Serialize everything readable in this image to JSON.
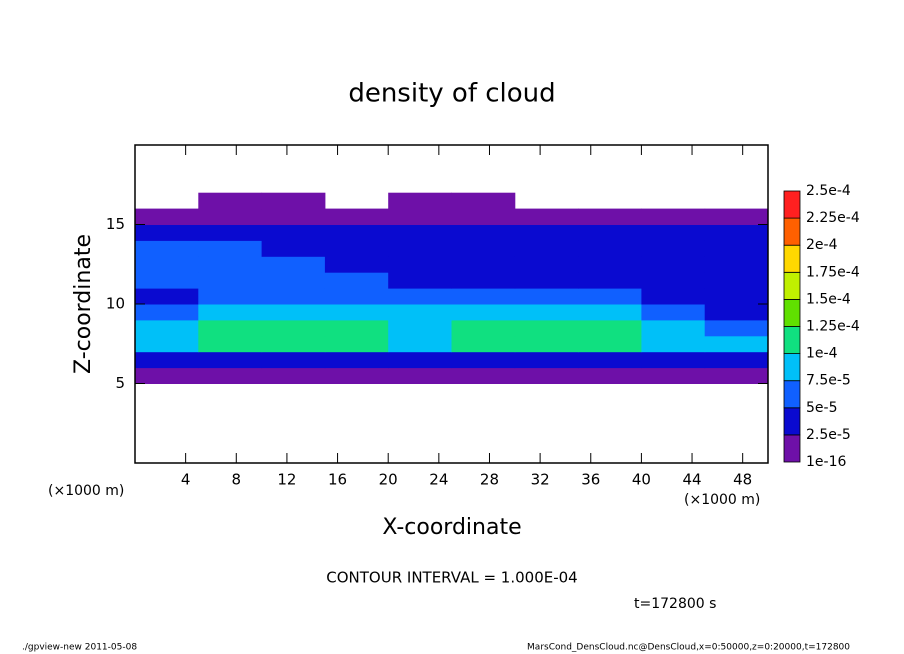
{
  "chart_data": {
    "type": "contour",
    "title": "density of cloud",
    "xlabel": "X-coordinate",
    "ylabel": "Z-coordinate",
    "xunit": "(×1000 m)",
    "yunit": "(×1000 m)",
    "annotation": "CONTOUR INTERVAL = 1.000E-04",
    "time_label": "t=172800 s",
    "footer_left": "./gpview-new  2011-05-08",
    "footer_right": "MarsCond_DensCloud.nc@DensCloud,x=0:50000,z=0:20000,t=172800",
    "xlim": [
      0,
      50
    ],
    "ylim": [
      0,
      20
    ],
    "xticks": [
      4,
      8,
      12,
      16,
      20,
      24,
      28,
      32,
      36,
      40,
      44,
      48
    ],
    "yticks": [
      5,
      10,
      15
    ],
    "x": [
      2.5,
      7.5,
      12.5,
      17.5,
      22.5,
      27.5,
      32.5,
      37.5,
      42.5,
      47.5
    ],
    "z": [
      0.5,
      1.5,
      2.5,
      3.5,
      4.5,
      5.5,
      6.5,
      7.5,
      8.5,
      9.5,
      10.5,
      11.5,
      12.5,
      13.5,
      14.5,
      15.5,
      16.5,
      17.5,
      18.5,
      19.5
    ],
    "values": [
      [
        null,
        null,
        null,
        null,
        null,
        null,
        null,
        null,
        null,
        null
      ],
      [
        null,
        null,
        null,
        null,
        null,
        null,
        null,
        null,
        null,
        null
      ],
      [
        null,
        null,
        null,
        null,
        null,
        null,
        null,
        null,
        null,
        null
      ],
      [
        null,
        null,
        null,
        null,
        null,
        null,
        null,
        null,
        null,
        null
      ],
      [
        null,
        null,
        null,
        null,
        null,
        null,
        null,
        null,
        null,
        null
      ],
      [
        1e-06,
        1e-06,
        1e-06,
        1e-06,
        1e-06,
        1e-06,
        1e-06,
        1e-06,
        1e-06,
        1e-06
      ],
      [
        3e-05,
        4e-05,
        4e-05,
        4e-05,
        4e-05,
        3e-05,
        4e-05,
        4e-05,
        4e-05,
        3e-05
      ],
      [
        9e-05,
        0.000105,
        0.00011,
        0.000105,
        9e-05,
        0.000105,
        0.00011,
        0.000105,
        9e-05,
        8e-05
      ],
      [
        8e-05,
        0.000105,
        0.00011,
        0.00011,
        8.5e-05,
        0.000105,
        0.00011,
        0.0001,
        8e-05,
        7e-05
      ],
      [
        5e-05,
        8e-05,
        9e-05,
        8.5e-05,
        7.5e-05,
        8e-05,
        8e-05,
        7.5e-05,
        5.5e-05,
        4e-05
      ],
      [
        4e-05,
        6e-05,
        6e-05,
        5.5e-05,
        5e-05,
        5e-05,
        5e-05,
        5e-05,
        4e-05,
        3e-05
      ],
      [
        6e-05,
        6e-05,
        5.5e-05,
        5e-05,
        4.5e-05,
        4.5e-05,
        4e-05,
        3.5e-05,
        3e-05,
        3e-05
      ],
      [
        5.5e-05,
        5.5e-05,
        5e-05,
        4.5e-05,
        4.5e-05,
        4.5e-05,
        4e-05,
        3.5e-05,
        3e-05,
        3e-05
      ],
      [
        5e-05,
        5e-05,
        4.5e-05,
        4.5e-05,
        4.5e-05,
        4.5e-05,
        4e-05,
        4e-05,
        3.5e-05,
        4e-05
      ],
      [
        4e-05,
        4e-05,
        4e-05,
        4e-05,
        4e-05,
        4e-05,
        4e-05,
        4e-05,
        4e-05,
        4e-05
      ],
      [
        1.5e-05,
        1.5e-05,
        1.5e-05,
        1.5e-05,
        1.5e-05,
        1.5e-05,
        1.5e-05,
        1.5e-05,
        1.5e-05,
        1.5e-05
      ],
      [
        null,
        1e-06,
        1e-06,
        null,
        1e-06,
        1e-06,
        null,
        null,
        null,
        null
      ],
      [
        null,
        null,
        null,
        null,
        null,
        null,
        null,
        null,
        null,
        null
      ],
      [
        null,
        null,
        null,
        null,
        null,
        null,
        null,
        null,
        null,
        null
      ],
      [
        null,
        null,
        null,
        null,
        null,
        null,
        null,
        null,
        null,
        null
      ]
    ],
    "levels": [
      {
        "value": 1e-16,
        "label": "1e-16"
      },
      {
        "value": 2.5e-05,
        "label": "2.5e-5"
      },
      {
        "value": 5e-05,
        "label": "5e-5"
      },
      {
        "value": 7.5e-05,
        "label": "7.5e-5"
      },
      {
        "value": 0.0001,
        "label": "1e-4"
      },
      {
        "value": 0.000125,
        "label": "1.25e-4"
      },
      {
        "value": 0.00015,
        "label": "1.5e-4"
      },
      {
        "value": 0.000175,
        "label": "1.75e-4"
      },
      {
        "value": 0.0002,
        "label": "2e-4"
      },
      {
        "value": 0.000225,
        "label": "2.25e-4"
      },
      {
        "value": 0.00025,
        "label": "2.5e-4"
      }
    ],
    "colors": [
      "#6e10a8",
      "#0a0ad0",
      "#1060ff",
      "#00c0f8",
      "#10e080",
      "#60e000",
      "#c0f000",
      "#ffd800",
      "#ff6000",
      "#ff2020",
      "#ff9898"
    ]
  }
}
